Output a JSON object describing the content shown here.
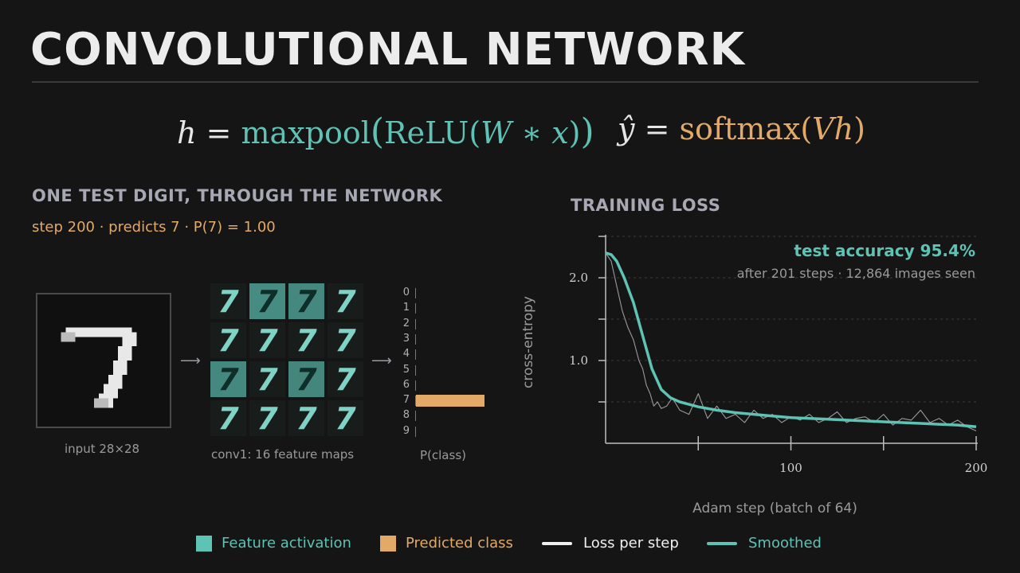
{
  "title": "CONVOLUTIONAL NETWORK",
  "equations": {
    "hidden": {
      "lhs": "h",
      "eq": "=",
      "fn": "maxpool",
      "inner_fn": "ReLU",
      "w": "W",
      "op": "∗",
      "x": "x"
    },
    "output": {
      "lhs": "ŷ",
      "eq": "=",
      "fn": "softmax",
      "v": "V",
      "h": "h"
    }
  },
  "left_panel": {
    "heading": "ONE TEST DIGIT, THROUGH THE NETWORK",
    "status": "step 200  ·  predicts 7  ·  P(7) = 1.00",
    "input_caption": "input 28×28",
    "feature_caption": "conv1: 16 feature maps",
    "pclass_caption": "P(class)",
    "class_labels": [
      "0",
      "1",
      "2",
      "3",
      "4",
      "5",
      "6",
      "7",
      "8",
      "9"
    ],
    "probabilities": [
      0,
      0,
      0,
      0,
      0,
      0,
      0,
      1.0,
      0,
      0
    ],
    "predicted_class": 7,
    "feature_glyph": "7",
    "feature_activations": [
      0.1,
      0.85,
      0.8,
      0.1,
      0.15,
      0.15,
      0.15,
      0.15,
      0.8,
      0.3,
      0.75,
      0.15,
      0.15,
      0.15,
      0.15,
      0.15
    ]
  },
  "right_panel": {
    "heading": "TRAINING LOSS",
    "accuracy": "test accuracy 95.4%",
    "detail": "after 201 steps  ·  12,864 images seen"
  },
  "chart_data": {
    "type": "line",
    "title": "TRAINING LOSS",
    "xlabel": "Adam step (batch of 64)",
    "ylabel": "cross-entropy",
    "xlim": [
      0,
      200
    ],
    "ylim": [
      0,
      2.5
    ],
    "x_ticks": [
      50,
      100,
      150,
      200
    ],
    "x_tick_labels": [
      "",
      "100",
      "",
      "200"
    ],
    "y_ticks": [
      0.5,
      1.0,
      1.5,
      2.0,
      2.5
    ],
    "y_tick_labels": [
      "",
      "1.0",
      "",
      "2.0",
      ""
    ],
    "grid": "horizontal dashed",
    "series": [
      {
        "name": "Loss per step",
        "x": [
          0,
          3,
          6,
          9,
          12,
          15,
          18,
          20,
          22,
          24,
          26,
          28,
          30,
          33,
          36,
          40,
          45,
          50,
          55,
          60,
          65,
          70,
          75,
          80,
          85,
          90,
          95,
          100,
          105,
          110,
          115,
          120,
          125,
          130,
          135,
          140,
          145,
          150,
          155,
          160,
          165,
          170,
          175,
          180,
          185,
          190,
          195,
          200
        ],
        "values": [
          2.3,
          2.2,
          1.9,
          1.6,
          1.4,
          1.25,
          1.0,
          0.9,
          0.7,
          0.6,
          0.45,
          0.5,
          0.42,
          0.45,
          0.55,
          0.4,
          0.35,
          0.6,
          0.3,
          0.45,
          0.3,
          0.35,
          0.25,
          0.4,
          0.3,
          0.35,
          0.25,
          0.32,
          0.28,
          0.35,
          0.25,
          0.3,
          0.38,
          0.25,
          0.3,
          0.32,
          0.25,
          0.35,
          0.22,
          0.3,
          0.28,
          0.4,
          0.25,
          0.3,
          0.22,
          0.28,
          0.2,
          0.15
        ]
      },
      {
        "name": "Smoothed",
        "x": [
          0,
          3,
          6,
          10,
          15,
          20,
          25,
          30,
          35,
          40,
          50,
          60,
          70,
          80,
          90,
          100,
          110,
          120,
          130,
          140,
          150,
          160,
          170,
          180,
          190,
          200
        ],
        "values": [
          2.3,
          2.28,
          2.2,
          2.0,
          1.7,
          1.3,
          0.9,
          0.65,
          0.55,
          0.5,
          0.44,
          0.4,
          0.37,
          0.35,
          0.33,
          0.31,
          0.3,
          0.29,
          0.28,
          0.27,
          0.26,
          0.25,
          0.24,
          0.23,
          0.22,
          0.2
        ]
      }
    ]
  },
  "legend": {
    "items": [
      {
        "label": "Feature activation",
        "color": "#5ec2b4",
        "kind": "swatch"
      },
      {
        "label": "Predicted class",
        "color": "#e3a967",
        "kind": "swatch"
      },
      {
        "label": "Loss per step",
        "color": "#f0f0f0",
        "kind": "line"
      },
      {
        "label": "Smoothed",
        "color": "#5ec2b4",
        "kind": "line"
      }
    ]
  },
  "colors": {
    "teal": "#5ec2b4",
    "orange": "#e3a967",
    "background": "#151515"
  }
}
